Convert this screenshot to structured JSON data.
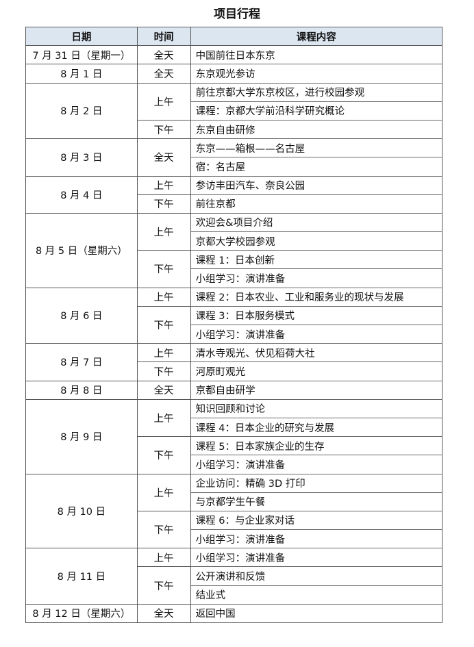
{
  "title": "项目行程",
  "headers": [
    "日期",
    "时间",
    "课程内容"
  ],
  "days": [
    {
      "date": "7 月 31 日（星期一）",
      "slots": [
        {
          "time": "全天",
          "items": [
            "中国前往日本东京"
          ]
        }
      ]
    },
    {
      "date": "8 月 1 日",
      "slots": [
        {
          "time": "全天",
          "items": [
            "东京观光参访"
          ]
        }
      ]
    },
    {
      "date": "8 月 2 日",
      "slots": [
        {
          "time": "上午",
          "items": [
            "前往京都大学东京校区，进行校园参观",
            "课程：京都大学前沿科学研究概论"
          ]
        },
        {
          "time": "下午",
          "items": [
            "东京自由研修"
          ]
        }
      ]
    },
    {
      "date": "8 月 3 日",
      "slots": [
        {
          "time": "全天",
          "items": [
            "东京——箱根——名古屋",
            "宿：名古屋"
          ]
        }
      ]
    },
    {
      "date": "8 月 4 日",
      "slots": [
        {
          "time": "上午",
          "items": [
            "参访丰田汽车、奈良公园"
          ]
        },
        {
          "time": "下午",
          "items": [
            "前往京都"
          ]
        }
      ]
    },
    {
      "date": "8 月 5 日（星期六）",
      "slots": [
        {
          "time": "上午",
          "items": [
            "欢迎会&项目介绍",
            "京都大学校园参观"
          ]
        },
        {
          "time": "下午",
          "items": [
            "课程 1：日本创新",
            "小组学习：演讲准备"
          ]
        }
      ]
    },
    {
      "date": "8 月 6 日",
      "slots": [
        {
          "time": "上午",
          "items": [
            "课程 2：日本农业、工业和服务业的现状与发展"
          ]
        },
        {
          "time": "下午",
          "items": [
            "课程 3：日本服务模式",
            "小组学习：演讲准备"
          ]
        }
      ]
    },
    {
      "date": "8 月 7 日",
      "slots": [
        {
          "time": "上午",
          "items": [
            "清水寺观光、伏见稻荷大社"
          ]
        },
        {
          "time": "下午",
          "items": [
            "河原町观光"
          ]
        }
      ]
    },
    {
      "date": "8 月 8 日",
      "slots": [
        {
          "time": "全天",
          "items": [
            "京都自由研学"
          ]
        }
      ]
    },
    {
      "date": "8 月 9 日",
      "slots": [
        {
          "time": "上午",
          "items": [
            "知识回顾和讨论",
            "课程 4：日本企业的研究与发展"
          ]
        },
        {
          "time": "下午",
          "items": [
            "课程 5：日本家族企业的生存",
            "小组学习：演讲准备"
          ]
        }
      ]
    },
    {
      "date": "8 月 10 日",
      "slots": [
        {
          "time": "上午",
          "items": [
            "企业访问：精确 3D 打印",
            "与京都学生午餐"
          ]
        },
        {
          "time": "下午",
          "items": [
            "课程 6：与企业家对话",
            "小组学习：演讲准备"
          ]
        }
      ]
    },
    {
      "date": "8 月 11 日",
      "slots": [
        {
          "time": "上午",
          "items": [
            "小组学习：演讲准备"
          ]
        },
        {
          "time": "下午",
          "items": [
            "公开演讲和反馈",
            "结业式"
          ]
        }
      ]
    },
    {
      "date": "8 月 12 日（星期六）",
      "slots": [
        {
          "time": "全天",
          "items": [
            "返回中国"
          ]
        }
      ]
    }
  ],
  "colors": {
    "header_bg": "#dce6f1",
    "border": "#555555"
  }
}
